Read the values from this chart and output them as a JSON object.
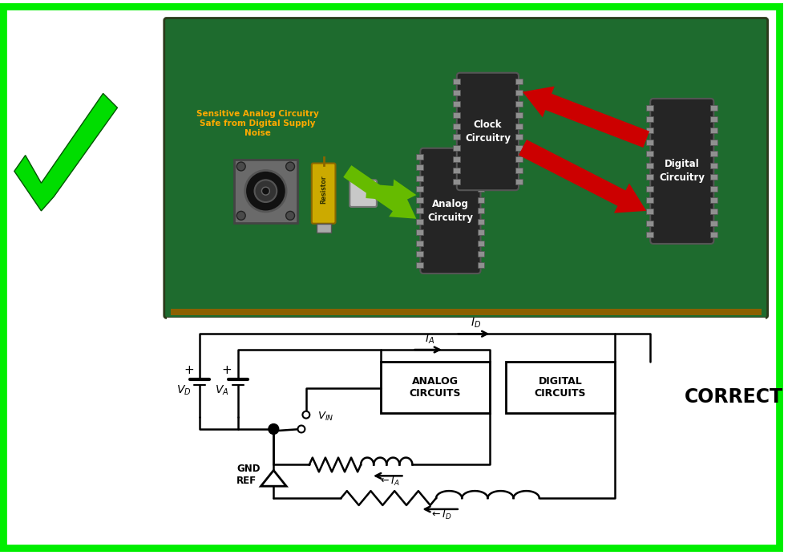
{
  "bg_color": "#ffffff",
  "border_color": "#00ee00",
  "pcb_color": "#1e6b2e",
  "chip_dark": "#252525",
  "chip_pin": "#909090",
  "sensitive_label": "Sensitive Analog Circuitry\nSafe from Digital Supply\nNoise",
  "sensitive_color": "#ffaa00",
  "correct_text": "CORRECT",
  "green_arrow_color": "#66bb00",
  "red_arrow_color": "#cc0000",
  "analog_chip_label": "Analog\nCircuitry",
  "digital_chip_label": "Digital\nCircuitry",
  "clock_chip_label": "Clock\nCircuitry",
  "analog_box_label": "ANALOG\nCIRCUITS",
  "digital_box_label": "DIGITAL\nCIRCUITS"
}
